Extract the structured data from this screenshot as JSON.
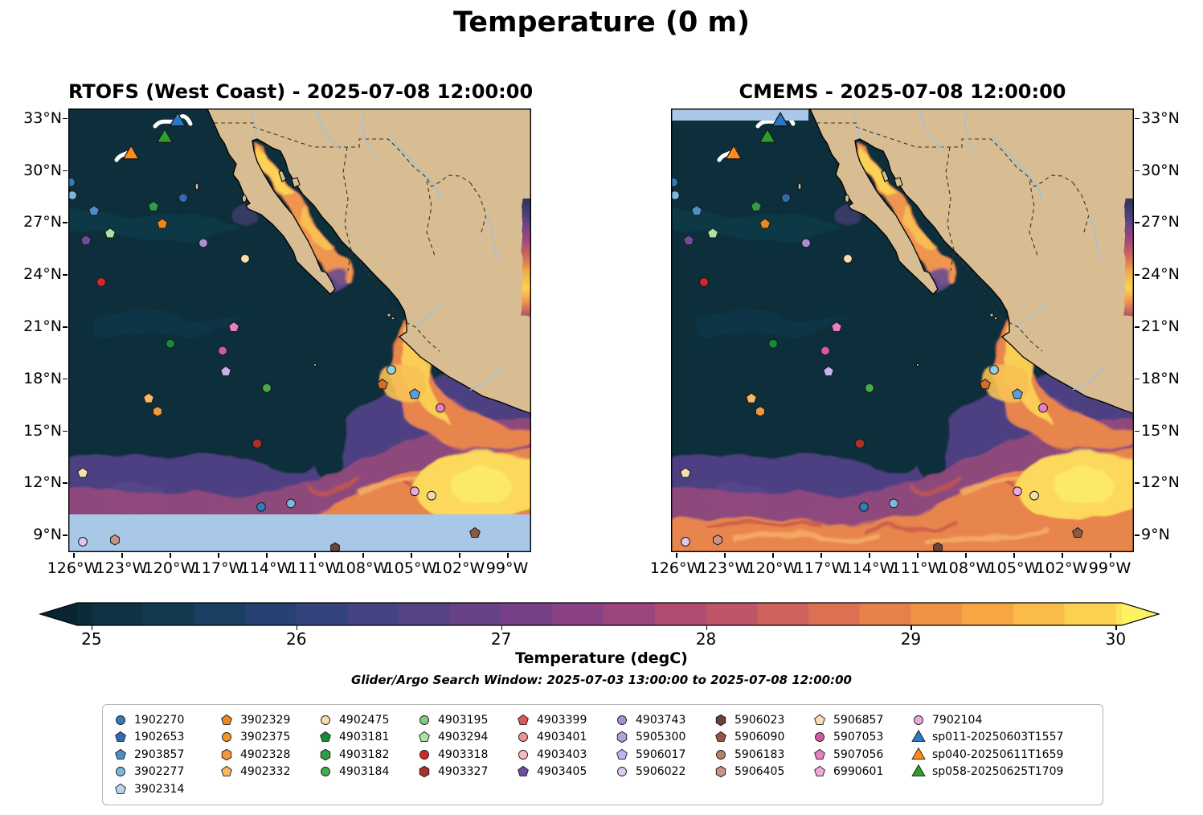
{
  "title": "Temperature (0 m)",
  "panels": [
    {
      "id": "rtofs",
      "title": "RTOFS (West Coast) - 2025-07-08 12:00:00"
    },
    {
      "id": "cmems",
      "title": "CMEMS - 2025-07-08 12:00:00"
    }
  ],
  "axes": {
    "lat_ticks": [
      {
        "label": "33°N",
        "value": 33
      },
      {
        "label": "30°N",
        "value": 30
      },
      {
        "label": "27°N",
        "value": 27
      },
      {
        "label": "24°N",
        "value": 24
      },
      {
        "label": "21°N",
        "value": 21
      },
      {
        "label": "18°N",
        "value": 18
      },
      {
        "label": "15°N",
        "value": 15
      },
      {
        "label": "12°N",
        "value": 12
      },
      {
        "label": "9°N",
        "value": 9
      }
    ],
    "lon_ticks": [
      {
        "label": "126°W",
        "value": -126
      },
      {
        "label": "123°W",
        "value": -123
      },
      {
        "label": "120°W",
        "value": -120
      },
      {
        "label": "117°W",
        "value": -117
      },
      {
        "label": "114°W",
        "value": -114
      },
      {
        "label": "111°W",
        "value": -111
      },
      {
        "label": "108°W",
        "value": -108
      },
      {
        "label": "105°W",
        "value": -105
      },
      {
        "label": "102°W",
        "value": -102
      },
      {
        "label": "99°W",
        "value": -99
      }
    ]
  },
  "colorbar": {
    "label": "Temperature (degC)",
    "range": [
      24.93,
      30.03
    ],
    "ticks": [
      {
        "label": "25",
        "value": 25
      },
      {
        "label": "26",
        "value": 26
      },
      {
        "label": "27",
        "value": 27
      },
      {
        "label": "28",
        "value": 28
      },
      {
        "label": "29",
        "value": 29
      },
      {
        "label": "30",
        "value": 30
      }
    ],
    "tip_colors": {
      "left": "#092531",
      "right": "#fcf263"
    },
    "band_colors": [
      "#0c2b38",
      "#103344",
      "#143a52",
      "#1a3f63",
      "#254273",
      "#35437d",
      "#454381",
      "#564384",
      "#674286",
      "#784187",
      "#8a4284",
      "#9c467e",
      "#ae4c74",
      "#c05568",
      "#cf615c",
      "#dd7052",
      "#e88049",
      "#f09344",
      "#f6a743",
      "#fabb48",
      "#fcd14f",
      "#fde45a"
    ]
  },
  "search_window_note": "Glider/Argo Search Window: 2025-07-03 13:00:00 to 2025-07-08 12:00:00",
  "legend": {
    "columns": [
      [
        {
          "id": "1902270",
          "shape": "circle",
          "color": "#2e7ebc"
        },
        {
          "id": "1902653",
          "shape": "pentagon",
          "color": "#2f6db0"
        },
        {
          "id": "2903857",
          "shape": "pentagon",
          "color": "#4a90c8"
        },
        {
          "id": "3902277",
          "shape": "circle",
          "color": "#7db8dc"
        },
        {
          "id": "3902314",
          "shape": "pentagon",
          "color": "#b9d4ea"
        }
      ],
      [
        {
          "id": "3902329",
          "shape": "pentagon",
          "color": "#f0861f"
        },
        {
          "id": "3902375",
          "shape": "circle",
          "color": "#f59425"
        },
        {
          "id": "4902328",
          "shape": "hexagon",
          "color": "#f09a3e"
        },
        {
          "id": "4902332",
          "shape": "pentagon",
          "color": "#f8b868"
        }
      ],
      [
        {
          "id": "4902475",
          "shape": "circle",
          "color": "#f9dcab"
        },
        {
          "id": "4903181",
          "shape": "pentagon",
          "color": "#168a38"
        },
        {
          "id": "4903182",
          "shape": "hexagon",
          "color": "#2f9e44"
        },
        {
          "id": "4903184",
          "shape": "circle",
          "color": "#44ad4c"
        }
      ],
      [
        {
          "id": "4903195",
          "shape": "circle",
          "color": "#81cc81"
        },
        {
          "id": "4903294",
          "shape": "pentagon",
          "color": "#aae3a2"
        },
        {
          "id": "4903318",
          "shape": "circle",
          "color": "#d62728"
        },
        {
          "id": "4903327",
          "shape": "hexagon",
          "color": "#a93226"
        }
      ],
      [
        {
          "id": "4903399",
          "shape": "pentagon",
          "color": "#e25858"
        },
        {
          "id": "4903401",
          "shape": "circle",
          "color": "#f19494"
        },
        {
          "id": "4903403",
          "shape": "circle",
          "color": "#f8bcc4"
        },
        {
          "id": "4903405",
          "shape": "pentagon",
          "color": "#6a4fa0"
        }
      ],
      [
        {
          "id": "4903743",
          "shape": "circle",
          "color": "#a98fd0"
        },
        {
          "id": "5905300",
          "shape": "hexagon",
          "color": "#b7a0da"
        },
        {
          "id": "5906017",
          "shape": "pentagon",
          "color": "#c6b2e8"
        },
        {
          "id": "5906022",
          "shape": "circle",
          "color": "#dcc8f0"
        }
      ],
      [
        {
          "id": "5906023",
          "shape": "hexagon",
          "color": "#6b4237"
        },
        {
          "id": "5906090",
          "shape": "pentagon",
          "color": "#8d5a44"
        },
        {
          "id": "5906183",
          "shape": "circle",
          "color": "#b08468"
        },
        {
          "id": "5906405",
          "shape": "hexagon",
          "color": "#c79486"
        }
      ],
      [
        {
          "id": "5906857",
          "shape": "pentagon",
          "color": "#f6e0b2"
        },
        {
          "id": "5907053",
          "shape": "circle",
          "color": "#d457a8"
        },
        {
          "id": "5907056",
          "shape": "pentagon",
          "color": "#e87fc0"
        },
        {
          "id": "6990601",
          "shape": "pentagon",
          "color": "#f2aad6"
        }
      ],
      [
        {
          "id": "7902104",
          "shape": "circle",
          "color": "#eba8dd"
        },
        {
          "id": "sp011-20250603T1557",
          "shape": "triangle",
          "color": "#2878c8"
        },
        {
          "id": "sp040-20250611T1659",
          "shape": "triangle",
          "color": "#ff8c1a"
        },
        {
          "id": "sp058-20250625T1709",
          "shape": "triangle",
          "color": "#2ca02c"
        }
      ]
    ]
  },
  "chart_data": {
    "type": "heatmap",
    "title": "Temperature (0 m)",
    "variable": "Temperature (degC)",
    "depth": "0 m",
    "valid_time": "2025-07-08 12:00:00",
    "panels": [
      "RTOFS (West Coast) - 2025-07-08 12:00:00",
      "CMEMS - 2025-07-08 12:00:00"
    ],
    "lon_range_degW": [
      -126.3,
      -97.5
    ],
    "lat_range_degN": [
      8.0,
      33.55
    ],
    "temp_range_degC": [
      25,
      30
    ],
    "colorbar_extend": "both",
    "search_window": "2025-07-03 13:00:00 to 2025-07-08 12:00:00",
    "argo_floats": [
      {
        "lon": -126.15,
        "lat": 29.3,
        "shape": "circle",
        "color": "#2e7ebc"
      },
      {
        "lon": -126.05,
        "lat": 28.55,
        "shape": "circle",
        "color": "#7db8dc"
      },
      {
        "lon": -124.7,
        "lat": 27.65,
        "shape": "pentagon",
        "color": "#4a90c8"
      },
      {
        "lon": -123.7,
        "lat": 26.35,
        "shape": "pentagon",
        "color": "#aae3a2"
      },
      {
        "lon": -125.2,
        "lat": 25.95,
        "shape": "pentagon",
        "color": "#6a4fa0"
      },
      {
        "lon": -121.0,
        "lat": 27.9,
        "shape": "pentagon",
        "color": "#2f9e44"
      },
      {
        "lon": -120.45,
        "lat": 26.9,
        "shape": "pentagon",
        "color": "#f0861f"
      },
      {
        "lon": -119.15,
        "lat": 28.4,
        "shape": "circle",
        "color": "#2f6db0"
      },
      {
        "lon": -117.9,
        "lat": 25.8,
        "shape": "circle",
        "color": "#a98fd0"
      },
      {
        "lon": -115.3,
        "lat": 24.9,
        "shape": "circle",
        "color": "#f9dcab"
      },
      {
        "lon": -124.25,
        "lat": 23.55,
        "shape": "circle",
        "color": "#d62728"
      },
      {
        "lon": -116.0,
        "lat": 20.95,
        "shape": "pentagon",
        "color": "#e87fc0"
      },
      {
        "lon": -119.95,
        "lat": 20.0,
        "shape": "circle",
        "color": "#168a38"
      },
      {
        "lon": -116.7,
        "lat": 19.6,
        "shape": "circle",
        "color": "#d457a8"
      },
      {
        "lon": -116.5,
        "lat": 18.4,
        "shape": "pentagon",
        "color": "#c6b2e8"
      },
      {
        "lon": -106.2,
        "lat": 18.5,
        "shape": "circle",
        "color": "#8fd0e8"
      },
      {
        "lon": -113.95,
        "lat": 17.45,
        "shape": "circle",
        "color": "#44ad4c"
      },
      {
        "lon": -106.75,
        "lat": 17.65,
        "shape": "pentagon",
        "color": "#d96a28"
      },
      {
        "lon": -104.75,
        "lat": 17.1,
        "shape": "pentagon",
        "color": "#5aa0d8"
      },
      {
        "lon": -121.3,
        "lat": 16.85,
        "shape": "pentagon",
        "color": "#f8b868"
      },
      {
        "lon": -120.75,
        "lat": 16.1,
        "shape": "hexagon",
        "color": "#f09a3e"
      },
      {
        "lon": -103.15,
        "lat": 16.3,
        "shape": "circle",
        "color": "#e87fc0"
      },
      {
        "lon": -114.55,
        "lat": 14.25,
        "shape": "hexagon",
        "color": "#a93226"
      },
      {
        "lon": -125.4,
        "lat": 12.55,
        "shape": "pentagon",
        "color": "#f6e0b2"
      },
      {
        "lon": -114.3,
        "lat": 10.6,
        "shape": "circle",
        "color": "#2e7ebc"
      },
      {
        "lon": -112.45,
        "lat": 10.8,
        "shape": "circle",
        "color": "#7db8dc"
      },
      {
        "lon": -104.75,
        "lat": 11.5,
        "shape": "circle",
        "color": "#eba8dd"
      },
      {
        "lon": -103.7,
        "lat": 11.25,
        "shape": "circle",
        "color": "#f9dcab"
      },
      {
        "lon": -101.0,
        "lat": 9.1,
        "shape": "pentagon",
        "color": "#8d5a44"
      },
      {
        "lon": -125.4,
        "lat": 8.6,
        "shape": "circle",
        "color": "#dcc8f0"
      },
      {
        "lon": -123.4,
        "lat": 8.7,
        "shape": "hexagon",
        "color": "#c79486"
      },
      {
        "lon": -109.7,
        "lat": 8.25,
        "shape": "hexagon",
        "color": "#6b4237"
      }
    ],
    "gliders": [
      {
        "id": "sp011-20250603T1557",
        "lon": -119.5,
        "lat": 32.8,
        "color": "#2878c8"
      },
      {
        "id": "sp040-20250611T1659",
        "lon": -122.4,
        "lat": 30.9,
        "color": "#ff8c1a"
      },
      {
        "id": "sp058-20250625T1709",
        "lon": -120.3,
        "lat": 31.85,
        "color": "#2ca02c"
      }
    ]
  }
}
